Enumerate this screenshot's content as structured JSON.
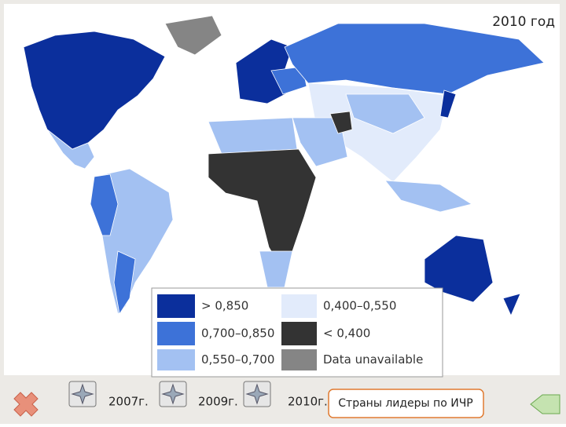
{
  "header": {
    "title": "2010 год"
  },
  "legend": {
    "items": [
      {
        "label": "> 0,850",
        "color": "#0b2f9c"
      },
      {
        "label": "0,700–0,850",
        "color": "#3d72d8"
      },
      {
        "label": "0,550–0,700",
        "color": "#a3c1f2"
      },
      {
        "label": "0,400–0,550",
        "color": "#e2ebfb"
      },
      {
        "label": "< 0,400",
        "color": "#333333"
      },
      {
        "label": "Data unavailable",
        "color": "#858585"
      }
    ]
  },
  "nav": {
    "buttons": [
      "2007г.",
      "2009г.",
      "2010г."
    ],
    "link": "Страны лидеры по ИЧР"
  }
}
